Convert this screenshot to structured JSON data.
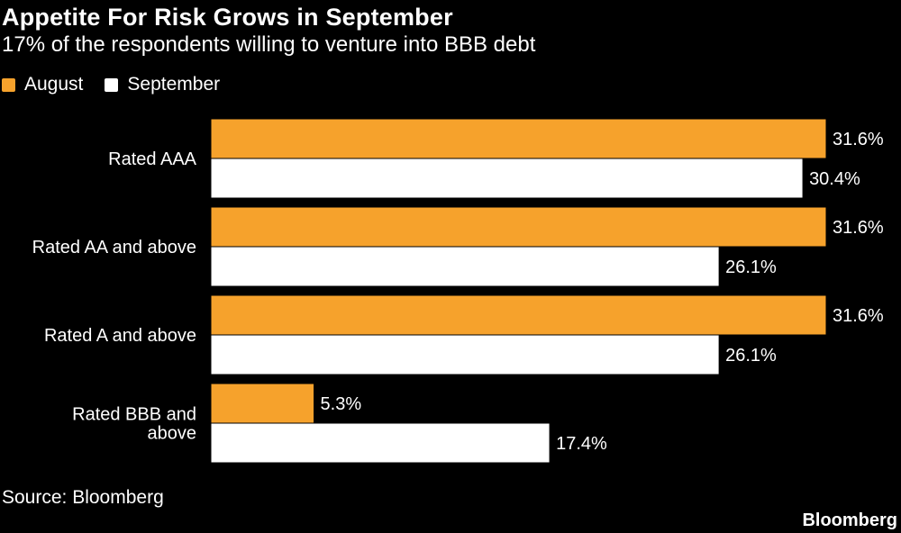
{
  "title": "Appetite For Risk Grows in September",
  "subtitle": "17% of the respondents willing to venture into BBB debt",
  "legend": {
    "august": "August",
    "september": "September"
  },
  "colors": {
    "background": "#000000",
    "august": "#f6a22c",
    "september": "#ffffff",
    "text": "#ffffff"
  },
  "chart_data": {
    "type": "bar",
    "orientation": "horizontal",
    "categories": [
      [
        "Rated AAA"
      ],
      [
        "Rated AA and above"
      ],
      [
        "Rated A and above"
      ],
      [
        "Rated BBB and",
        "above"
      ]
    ],
    "series": [
      {
        "name": "August",
        "values": [
          31.6,
          31.6,
          31.6,
          5.3
        ],
        "labels": [
          "31.6%",
          "31.6%",
          "31.6%",
          "5.3%"
        ]
      },
      {
        "name": "September",
        "values": [
          30.4,
          26.1,
          26.1,
          17.4
        ],
        "labels": [
          "30.4%",
          "26.1%",
          "26.1%",
          "17.4%"
        ]
      }
    ],
    "xlim": [
      0,
      31.6
    ],
    "grid": false,
    "legend_position": "top-left"
  },
  "source": "Source: Bloomberg",
  "brand": "Bloomberg"
}
